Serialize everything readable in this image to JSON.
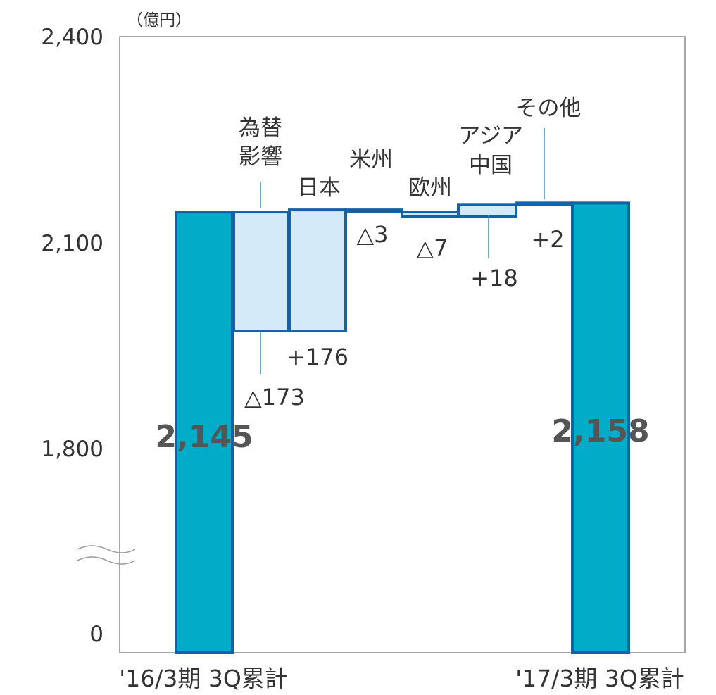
{
  "chart_data": {
    "type": "waterfall",
    "unit_label": "（億円）",
    "y_ticks": [
      "2,400",
      "2,100",
      "1,800",
      "0"
    ],
    "axis_break": true,
    "bars": [
      {
        "category": "'16/3期 3Q累計",
        "value": 2145,
        "kind": "total",
        "value_label": "2,145"
      },
      {
        "category": "为替影響",
        "label_lines": [
          "為替",
          "影響"
        ],
        "value": -173,
        "kind": "delta",
        "value_label": "△173"
      },
      {
        "category": "日本",
        "label_lines": [
          "日本"
        ],
        "value": 176,
        "kind": "delta",
        "value_label": "+176"
      },
      {
        "category": "米州",
        "label_lines": [
          "米州"
        ],
        "value": -3,
        "kind": "delta",
        "value_label": "△3"
      },
      {
        "category": "欧州",
        "label_lines": [
          "欧州"
        ],
        "value": -7,
        "kind": "delta",
        "value_label": "△7"
      },
      {
        "category": "アジア中国",
        "label_lines": [
          "アジア",
          "中国"
        ],
        "value": 18,
        "kind": "delta",
        "value_label": "+18"
      },
      {
        "category": "その他",
        "label_lines": [
          "その他"
        ],
        "value": 2,
        "kind": "delta",
        "value_label": "+2"
      },
      {
        "category": "'17/3期 3Q累計",
        "value": 2158,
        "kind": "total",
        "value_label": "2,158"
      }
    ],
    "colors": {
      "total_fill": "#00acc8",
      "delta_fill": "#d5eaf8",
      "bar_stroke": "#1461a6",
      "leader": "#3d8fc6",
      "frame": "#888888"
    }
  }
}
